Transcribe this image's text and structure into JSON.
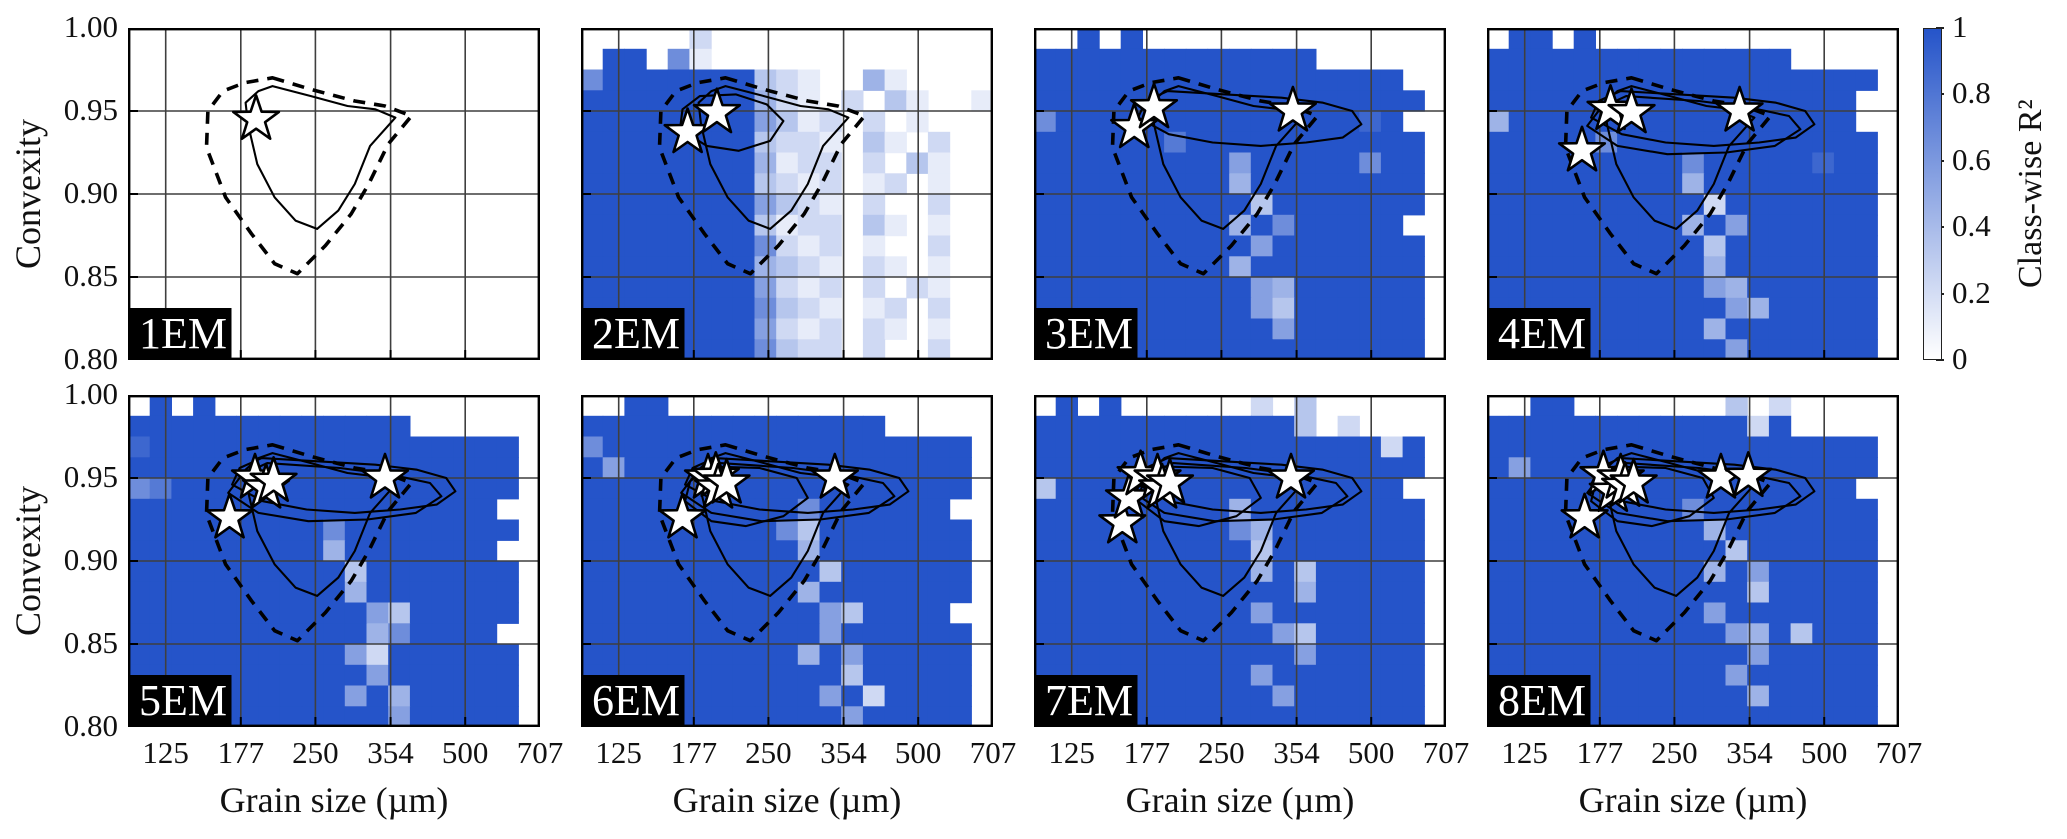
{
  "axes": {
    "x": {
      "label": "Grain size (µm)",
      "scale": "log",
      "range": [
        105,
        707
      ],
      "tick_labels": [
        "125",
        "177",
        "250",
        "354",
        "500",
        "707"
      ],
      "tick_values": [
        125,
        177,
        250,
        354,
        500,
        707
      ]
    },
    "y": {
      "label": "Convexity",
      "range": [
        0.8,
        1.0
      ],
      "tick_labels": [
        "1.00",
        "0.95",
        "0.90",
        "0.85",
        "0.80"
      ],
      "tick_values": [
        1.0,
        0.95,
        0.9,
        0.85,
        0.8
      ],
      "gridline_values": [
        0.95,
        0.9,
        0.85
      ]
    }
  },
  "colorbar": {
    "label": "Class-wise R²",
    "tick_labels": [
      "1",
      "0.8",
      "0.6",
      "0.4",
      "0.2",
      "0"
    ],
    "tick_values": [
      1,
      0.8,
      0.6,
      0.4,
      0.2,
      0
    ],
    "color_max": "#2554c9",
    "color_min": "#ffffff"
  },
  "chart_data": {
    "type": "heatmap",
    "title": "",
    "xlabel": "Grain size (µm)",
    "ylabel": "Convexity",
    "colorbar_label": "Class-wise R²",
    "grid_encoding": "Each panel grid: 16 rows (convexity 1.00 top to 0.80 bottom) x 19 cols (grain size 105-707 µm, log-spaced). '.' = no data (white); digit n = class-wise R² of about n/9 (9 = 1.0, full blue).",
    "star_marker_meaning": "white star = endmember location (grain size µm, convexity)",
    "contour_line_styles": {
      "dashed": "outer reference contour",
      "solid": "model contours"
    },
    "contour_shapes": {
      "dashed_ref": {
        "style": "dashed",
        "points": [
          [
            205,
            0.97
          ],
          [
            245,
            0.963
          ],
          [
            300,
            0.956
          ],
          [
            345,
            0.953
          ],
          [
            390,
            0.947
          ],
          [
            350,
            0.93
          ],
          [
            320,
            0.906
          ],
          [
            295,
            0.888
          ],
          [
            262,
            0.869
          ],
          [
            230,
            0.852
          ],
          [
            207,
            0.858
          ],
          [
            186,
            0.876
          ],
          [
            165,
            0.898
          ],
          [
            151,
            0.928
          ],
          [
            152,
            0.95
          ],
          [
            163,
            0.962
          ],
          [
            180,
            0.967
          ]
        ]
      },
      "solid_blob": {
        "style": "solid",
        "points": [
          [
            205,
            0.965
          ],
          [
            245,
            0.959
          ],
          [
            290,
            0.953
          ],
          [
            330,
            0.951
          ],
          [
            362,
            0.946
          ],
          [
            322,
            0.929
          ],
          [
            300,
            0.906
          ],
          [
            278,
            0.89
          ],
          [
            252,
            0.879
          ],
          [
            228,
            0.884
          ],
          [
            207,
            0.898
          ],
          [
            191,
            0.918
          ],
          [
            183,
            0.942
          ],
          [
            181,
            0.955
          ],
          [
            192,
            0.962
          ]
        ]
      },
      "loop_small": {
        "style": "solid",
        "points": [
          [
            182,
            0.959
          ],
          [
            215,
            0.96
          ],
          [
            248,
            0.954
          ],
          [
            268,
            0.944
          ],
          [
            252,
            0.932
          ],
          [
            218,
            0.926
          ],
          [
            188,
            0.929
          ],
          [
            166,
            0.939
          ],
          [
            168,
            0.951
          ]
        ]
      },
      "loop_wide": {
        "style": "solid",
        "points": [
          [
            195,
            0.962
          ],
          [
            255,
            0.96
          ],
          [
            330,
            0.958
          ],
          [
            400,
            0.955
          ],
          [
            458,
            0.95
          ],
          [
            478,
            0.942
          ],
          [
            438,
            0.934
          ],
          [
            370,
            0.931
          ],
          [
            300,
            0.929
          ],
          [
            240,
            0.931
          ],
          [
            196,
            0.936
          ],
          [
            170,
            0.946
          ],
          [
            176,
            0.956
          ]
        ]
      },
      "loop_wide2": {
        "style": "solid",
        "points": [
          [
            200,
            0.959
          ],
          [
            280,
            0.956
          ],
          [
            355,
            0.952
          ],
          [
            425,
            0.947
          ],
          [
            448,
            0.939
          ],
          [
            398,
            0.929
          ],
          [
            318,
            0.925
          ],
          [
            242,
            0.924
          ],
          [
            192,
            0.929
          ],
          [
            167,
            0.941
          ],
          [
            178,
            0.952
          ]
        ]
      },
      "loop_mid": {
        "style": "solid",
        "points": [
          [
            190,
            0.957
          ],
          [
            240,
            0.956
          ],
          [
            285,
            0.95
          ],
          [
            300,
            0.938
          ],
          [
            268,
            0.927
          ],
          [
            225,
            0.921
          ],
          [
            192,
            0.924
          ],
          [
            170,
            0.936
          ],
          [
            174,
            0.948
          ]
        ]
      }
    },
    "panels": [
      {
        "label": "1EM",
        "row": 0,
        "col": 0,
        "stars": [
          [
            190,
            0.945
          ]
        ],
        "contours": [
          "dashed_ref",
          "solid_blob"
        ],
        "grid": []
      },
      {
        "label": "2EM",
        "row": 0,
        "col": 1,
        "stars": [
          [
            172,
            0.937
          ],
          [
            197,
            0.949
          ]
        ],
        "contours": [
          "dashed_ref",
          "solid_blob",
          "loop_small"
        ],
        "grid": [
          ".....2.............",
          ".99.61.............",
          "69999999321..41....",
          "99999999421.2.31..1",
          "999999995312.2.1...",
          "999999993221.31.2..",
          "999999994122.2.31..",
          "999999993212.12.1..",
          "999999995321.2..2..",
          "999999993122.31.1..",
          "999999996212.1..2..",
          "999999994321.21.1..",
          "999999995212.2.21..",
          "999999996321.12.2..",
          "999999995212.21.1..",
          "999999996322.2..2.."
        ]
      },
      {
        "label": "3EM",
        "row": 0,
        "col": 2,
        "stars": [
          [
            167,
            0.94
          ],
          [
            183,
            0.952
          ],
          [
            348,
            0.95
          ]
        ],
        "contours": [
          "dashed_ref",
          "solid_blob",
          "loop_wide"
        ],
        "grid": [
          "..9.9..............",
          "9999999999999......",
          "99999999999999999..",
          "999999999999999999.",
          "69999999999999989..",
          "999999799999999999.",
          "999999999599999699.",
          "999999999499999999.",
          "999999999939999999.",
          "99999999949699999..",
          "999999999959999999.",
          "999999999499999999.",
          "999999999954999999.",
          "999999999953999999.",
          "999999999995999999.",
          "999999999999999999."
        ]
      },
      {
        "label": "4EM",
        "row": 0,
        "col": 3,
        "stars": [
          [
            163,
            0.926
          ],
          [
            186,
            0.951
          ],
          [
            205,
            0.949
          ],
          [
            338,
            0.95
          ]
        ],
        "contours": [
          "dashed_ref",
          "solid_blob",
          "loop_wide",
          "loop_wide2"
        ],
        "grid": [
          ".99.9..............",
          "99999999999999.....",
          "999999999999999999.",
          "99999999999999999..",
          "49999999999999999..",
          "999996999999999999.",
          "999999999699999899.",
          "999999999499999999.",
          "999999999929999999.",
          "999999999495999999.",
          "999999999939999999.",
          "999999999949999999.",
          "999999999954999999.",
          "999999999995499999.",
          "999999999949999999.",
          "999999999995999999."
        ]
      },
      {
        "label": "5EM",
        "row": 1,
        "col": 0,
        "stars": [
          [
            168,
            0.926
          ],
          [
            189,
            0.95
          ],
          [
            199,
            0.944
          ],
          [
            206,
            0.948
          ],
          [
            345,
            0.95
          ]
        ],
        "contours": [
          "dashed_ref",
          "solid_blob",
          "loop_wide",
          "loop_wide2"
        ],
        "grid": [
          ".9.9...............",
          "9999999999999......",
          "899999999999999999.",
          "999999999999999999.",
          "679999999999999999.",
          "99999999999999999..",
          "999999999699999999.",
          "99999999949999999..",
          "999999999939999999.",
          "999999999949999999.",
          "999999999995399999.",
          "99999999999469999..",
          "999999999952999999.",
          "999999999995999999.",
          "999999999959499999.",
          "999999999999599999."
        ]
      },
      {
        "label": "6EM",
        "row": 1,
        "col": 1,
        "stars": [
          [
            168,
            0.926
          ],
          [
            189,
            0.95
          ],
          [
            196,
            0.951
          ],
          [
            198,
            0.944
          ],
          [
            206,
            0.947
          ],
          [
            340,
            0.95
          ]
        ],
        "contours": [
          "dashed_ref",
          "solid_blob",
          "loop_wide",
          "loop_wide2",
          "loop_mid"
        ],
        "grid": [
          "..99...............",
          "99999999999999.....",
          "699999999999999999.",
          "959999999999999999.",
          "999999999999999999.",
          "99999999996999999..",
          "999999999639999999.",
          "999999999949999999.",
          "999999999993999999.",
          "999999999949999999.",
          "99999999999539999..",
          "999999999995999999.",
          "999999999949599999.",
          "999999999999399999.",
          "999999999995929999.",
          "999999999999599999."
        ]
      },
      {
        "label": "7EM",
        "row": 1,
        "col": 2,
        "stars": [
          [
            158,
            0.923
          ],
          [
            163,
            0.938
          ],
          [
            172,
            0.952
          ],
          [
            186,
            0.95
          ],
          [
            190,
            0.944
          ],
          [
            197,
            0.947
          ],
          [
            345,
            0.95
          ]
        ],
        "contours": [
          "dashed_ref",
          "solid_blob",
          "loop_wide",
          "loop_wide2",
          "loop_mid"
        ],
        "grid": [
          ".9.9......2.3......",
          "9999999999993.2....",
          "999999999999999929.",
          "999999999999999999.",
          "39999999999999999..",
          "999999999499999999.",
          "999999999649999999.",
          "999999999939999999.",
          "999999999949399999.",
          "999999999999499999.",
          "999999999959999999.",
          "999999999995399999.",
          "999999999999599999.",
          "999999999959999999.",
          "999999999995999999.",
          "999999999999999999."
        ]
      },
      {
        "label": "8EM",
        "row": 1,
        "col": 3,
        "stars": [
          [
            165,
            0.926
          ],
          [
            180,
            0.952
          ],
          [
            188,
            0.942
          ],
          [
            195,
            0.95
          ],
          [
            199,
            0.945
          ],
          [
            207,
            0.947
          ],
          [
            310,
            0.95
          ],
          [
            352,
            0.951
          ]
        ],
        "contours": [
          "dashed_ref",
          "solid_blob",
          "loop_wide",
          "loop_wide2",
          "loop_mid"
        ],
        "grid": [
          "..99.......3.2.....",
          "99999999999929.....",
          "999999999999999999.",
          "959999999999999999.",
          "99999999999999999..",
          "999999999699999999.",
          "999999999949999999.",
          "999999999993999999.",
          "999999999949599999.",
          "999999999999399999.",
          "999999999959999999.",
          "999999999995493999.",
          "999999999999599999.",
          "999999999995999999.",
          "999999999999499999.",
          "999999999999999999."
        ]
      }
    ],
    "layout_hints": {
      "grid_on": true,
      "rows": 2,
      "cols": 4,
      "colorbar_position": "right of top-right panel"
    }
  }
}
